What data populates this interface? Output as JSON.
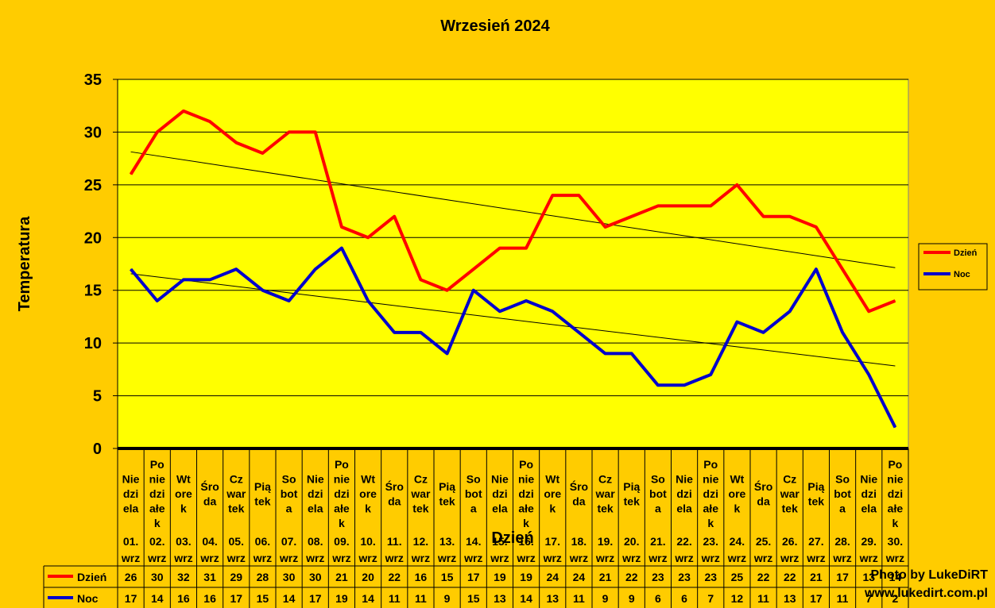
{
  "chart_data": {
    "type": "line",
    "title": "Wrzesień 2024",
    "xlabel": "Dzień",
    "ylabel": "Temperatura",
    "ylim": [
      0,
      35
    ],
    "yticks": [
      0,
      5,
      10,
      15,
      20,
      25,
      30,
      35
    ],
    "grid": "horizontal",
    "legend_position": "right",
    "categories": [
      {
        "day": "Nie dzi ela",
        "date": "01. wrz"
      },
      {
        "day": "Po nie dzi ałe k",
        "date": "02. wrz"
      },
      {
        "day": "Wt ore k",
        "date": "03. wrz"
      },
      {
        "day": "Śro da",
        "date": "04. wrz"
      },
      {
        "day": "Cz war tek",
        "date": "05. wrz"
      },
      {
        "day": "Pią tek",
        "date": "06. wrz"
      },
      {
        "day": "So bot a",
        "date": "07. wrz"
      },
      {
        "day": "Nie dzi ela",
        "date": "08. wrz"
      },
      {
        "day": "Po nie dzi ałe k",
        "date": "09. wrz"
      },
      {
        "day": "Wt ore k",
        "date": "10. wrz"
      },
      {
        "day": "Śro da",
        "date": "11. wrz"
      },
      {
        "day": "Cz war tek",
        "date": "12. wrz"
      },
      {
        "day": "Pią tek",
        "date": "13. wrz"
      },
      {
        "day": "So bot a",
        "date": "14. wrz"
      },
      {
        "day": "Nie dzi ela",
        "date": "15. wrz"
      },
      {
        "day": "Po nie dzi ałe k",
        "date": "16. wrz"
      },
      {
        "day": "Wt ore k",
        "date": "17. wrz"
      },
      {
        "day": "Śro da",
        "date": "18. wrz"
      },
      {
        "day": "Cz war tek",
        "date": "19. wrz"
      },
      {
        "day": "Pią tek",
        "date": "20. wrz"
      },
      {
        "day": "So bot a",
        "date": "21. wrz"
      },
      {
        "day": "Nie dzi ela",
        "date": "22. wrz"
      },
      {
        "day": "Po nie dzi ałe k",
        "date": "23. wrz"
      },
      {
        "day": "Wt ore k",
        "date": "24. wrz"
      },
      {
        "day": "Śro da",
        "date": "25. wrz"
      },
      {
        "day": "Cz war tek",
        "date": "26. wrz"
      },
      {
        "day": "Pią tek",
        "date": "27. wrz"
      },
      {
        "day": "So bot a",
        "date": "28. wrz"
      },
      {
        "day": "Nie dzi ela",
        "date": "29. wrz"
      },
      {
        "day": "Po nie dzi ałe k",
        "date": "30. wrz"
      }
    ],
    "series": [
      {
        "name": "Dzień",
        "color": "#FF0000",
        "values": [
          26,
          30,
          32,
          31,
          29,
          28,
          30,
          30,
          21,
          20,
          22,
          16,
          15,
          17,
          19,
          19,
          24,
          24,
          21,
          22,
          23,
          23,
          23,
          25,
          22,
          22,
          21,
          17,
          13,
          14
        ]
      },
      {
        "name": "Noc",
        "color": "#0000CC",
        "values": [
          17,
          14,
          16,
          16,
          17,
          15,
          14,
          17,
          19,
          14,
          11,
          11,
          9,
          15,
          13,
          14,
          13,
          11,
          9,
          9,
          6,
          6,
          7,
          12,
          11,
          13,
          17,
          11,
          7,
          2
        ]
      }
    ],
    "trendlines": true
  },
  "colors": {
    "background": "#FFCC00",
    "plot_area": "#FFFF00",
    "trend": "#000000"
  },
  "credit": {
    "line1": "Photo by LukeDiRT",
    "line2": "www.lukedirt.com.pl"
  }
}
